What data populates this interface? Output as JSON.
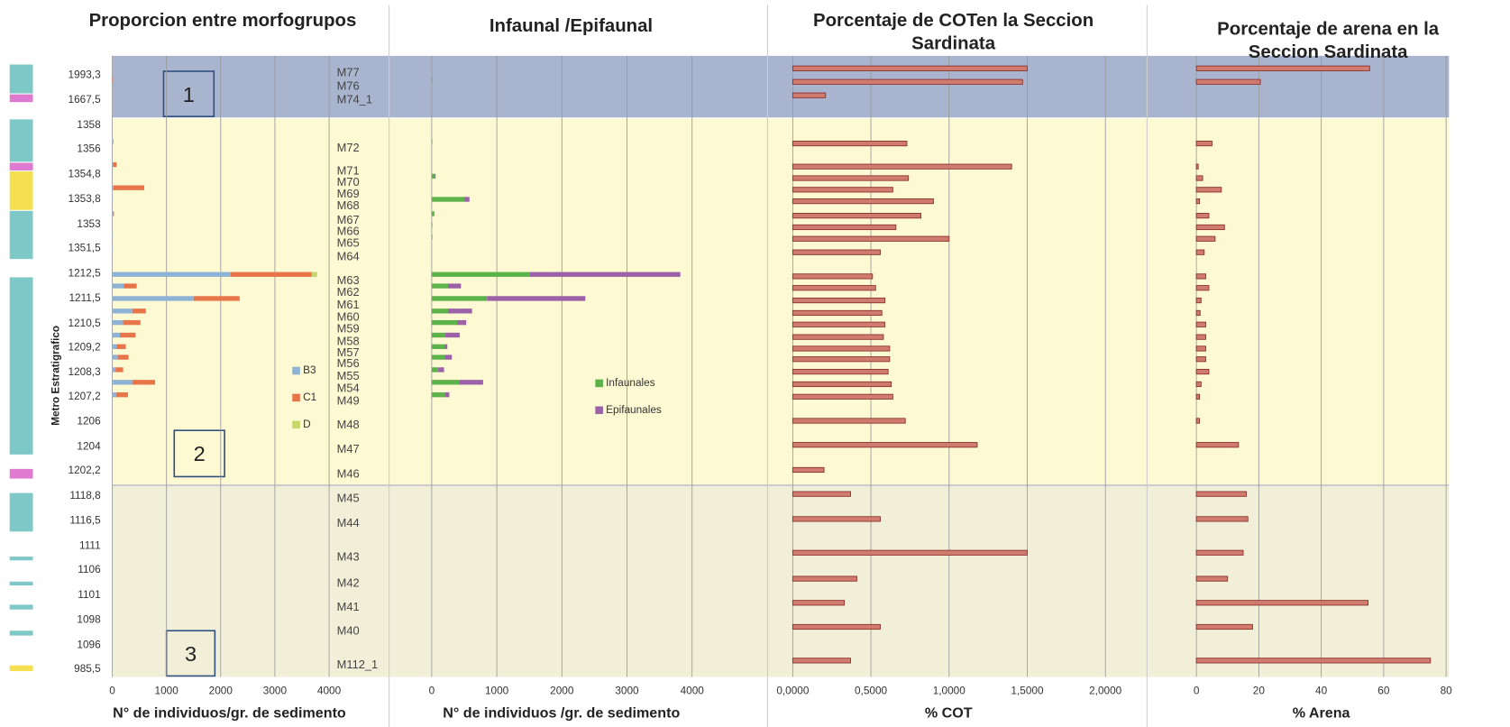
{
  "samples": [
    "M77",
    "M76",
    "M74_1",
    "M72",
    "M71",
    "M70",
    "M69",
    "M68",
    "M67",
    "M66",
    "M65",
    "M64",
    "M63",
    "M62",
    "M61",
    "M60",
    "M59",
    "M58",
    "M57",
    "M56",
    "M55",
    "M54",
    "M49",
    "M48",
    "M47",
    "M46",
    "M45",
    "M44",
    "M43",
    "M42",
    "M41",
    "M40",
    "M112_1"
  ],
  "depths": [
    "1993,3",
    "1667,5",
    "1358",
    "1356",
    "1354,8",
    "1353,8",
    "1353",
    "1351,5",
    "1212,5",
    "1211,5",
    "1210,5",
    "1209,2",
    "1208,3",
    "1207,2",
    "1206",
    "1204",
    "1202,2",
    "1118,8",
    "1116,5",
    "1111",
    "1106",
    "1101",
    "1098",
    "1096",
    "985,5"
  ],
  "y_axis_label": "Metro Estratigrafico",
  "zones": [
    "1",
    "2",
    "3"
  ],
  "chart_data": [
    {
      "type": "stacked_barh",
      "title": [
        "Proporcion entre morfogrupos"
      ],
      "xlabel": "N° de individuos/gr. de sedimento",
      "xlim": [
        0,
        4000
      ],
      "xticks": [
        0,
        1000,
        2000,
        3000,
        4000
      ],
      "series": [
        {
          "name": "B3",
          "color": "#8fb3d6",
          "values": [
            0,
            0,
            0,
            10,
            10,
            0,
            20,
            10,
            10,
            0,
            10,
            10,
            2180,
            210,
            1500,
            370,
            200,
            140,
            80,
            100,
            60,
            370,
            70,
            0,
            0,
            0,
            0,
            0,
            0,
            0,
            0,
            0,
            0
          ]
        },
        {
          "name": "C1",
          "color": "#e8744a",
          "values": [
            0,
            10,
            0,
            10,
            70,
            0,
            570,
            0,
            20,
            0,
            0,
            0,
            1500,
            240,
            850,
            250,
            320,
            290,
            170,
            200,
            140,
            420,
            220,
            0,
            0,
            0,
            0,
            0,
            0,
            0,
            0,
            0,
            0
          ]
        },
        {
          "name": "D",
          "color": "#c6d86a",
          "values": [
            0,
            0,
            0,
            0,
            0,
            0,
            0,
            0,
            0,
            0,
            0,
            0,
            100,
            0,
            0,
            0,
            0,
            0,
            0,
            0,
            0,
            0,
            0,
            0,
            0,
            0,
            0,
            0,
            0,
            0,
            0,
            0,
            0
          ]
        }
      ]
    },
    {
      "type": "stacked_barh",
      "title": [
        "Infaunal /Epifaunal"
      ],
      "xlabel": "N° de individuos /gr. de sedimento",
      "xlim": [
        0,
        4000
      ],
      "xticks": [
        0,
        1000,
        2000,
        3000,
        4000
      ],
      "series": [
        {
          "name": "Infaunales",
          "color": "#5bb34a",
          "values": [
            0,
            10,
            0,
            10,
            0,
            50,
            0,
            500,
            30,
            10,
            10,
            0,
            1500,
            250,
            850,
            250,
            390,
            210,
            200,
            200,
            100,
            420,
            200,
            0,
            0,
            0,
            0,
            0,
            0,
            0,
            0,
            0,
            0
          ]
        },
        {
          "name": "Epifaunales",
          "color": "#9b62a8",
          "values": [
            0,
            0,
            0,
            0,
            0,
            10,
            0,
            80,
            10,
            0,
            0,
            0,
            2320,
            200,
            1510,
            370,
            140,
            220,
            40,
            110,
            90,
            370,
            70,
            0,
            0,
            0,
            0,
            0,
            0,
            0,
            0,
            0,
            0
          ]
        }
      ]
    },
    {
      "type": "barh",
      "title": [
        "Porcentaje de COTen la Seccion",
        "Sardinata"
      ],
      "xlabel": "% COT",
      "xlim": [
        0,
        2
      ],
      "xticks": [
        {
          "value": 0,
          "label": "0,0000"
        },
        {
          "value": 0.5,
          "label": "0,5000"
        },
        {
          "value": 1,
          "label": "1,0000"
        },
        {
          "value": 1.5,
          "label": "1,5000"
        },
        {
          "value": 2,
          "label": "2,0000"
        }
      ],
      "color": "#cf7b6e",
      "values": [
        1.5,
        1.47,
        0.21,
        0.73,
        1.4,
        0.74,
        0.64,
        0.9,
        0.82,
        0.66,
        1.0,
        0.56,
        0.51,
        0.53,
        0.59,
        0.57,
        0.59,
        0.58,
        0.62,
        0.62,
        0.61,
        0.63,
        0.64,
        0.72,
        1.18,
        0.2,
        0.37,
        0.56,
        1.5,
        0.41,
        0.33,
        0.56,
        0.37
      ]
    },
    {
      "type": "barh",
      "title": [
        "Porcentaje de arena en la",
        "Seccion Sardinata"
      ],
      "xlabel": "% Arena",
      "xlim": [
        0,
        80
      ],
      "xticks": [
        0,
        20,
        40,
        60,
        80
      ],
      "color": "#cf7b6e",
      "values": [
        55.5,
        20.5,
        0,
        5,
        0.6,
        2,
        8,
        1,
        4,
        9,
        6,
        2.5,
        3,
        4,
        1.5,
        1.2,
        3,
        3,
        3,
        3,
        4,
        1.5,
        1,
        1,
        13.5,
        0,
        16,
        16.5,
        15,
        10,
        55,
        18,
        75
      ]
    }
  ]
}
